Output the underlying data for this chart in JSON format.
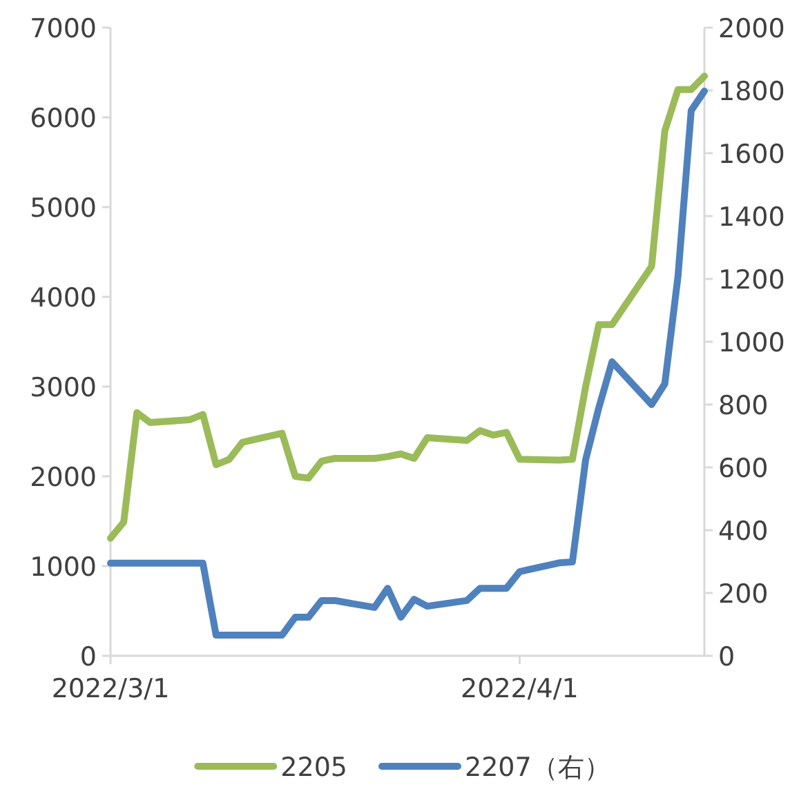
{
  "chart_data": {
    "type": "line",
    "x": [
      "2022-03-01",
      "2022-03-02",
      "2022-03-03",
      "2022-03-04",
      "2022-03-07",
      "2022-03-08",
      "2022-03-09",
      "2022-03-10",
      "2022-03-11",
      "2022-03-14",
      "2022-03-15",
      "2022-03-16",
      "2022-03-17",
      "2022-03-18",
      "2022-03-21",
      "2022-03-22",
      "2022-03-23",
      "2022-03-24",
      "2022-03-25",
      "2022-03-28",
      "2022-03-29",
      "2022-03-30",
      "2022-03-31",
      "2022-04-01",
      "2022-04-04",
      "2022-04-05",
      "2022-04-06",
      "2022-04-07",
      "2022-04-08",
      "2022-04-11",
      "2022-04-12",
      "2022-04-13",
      "2022-04-14",
      "2022-04-15"
    ],
    "series": [
      {
        "name": "2205",
        "color": "#9bbb59",
        "values": [
          1310,
          1490,
          2710,
          2600,
          2630,
          2690,
          2130,
          2190,
          2380,
          2480,
          2000,
          1980,
          2170,
          2200,
          2200,
          2220,
          2250,
          2200,
          2430,
          2400,
          2510,
          2460,
          2490,
          2190,
          2180,
          2190,
          3000,
          3690,
          3690,
          4340,
          5850,
          6310,
          6310,
          6460
        ]
      },
      {
        "name": "2207（右）",
        "color": "#4f81bd",
        "axis": "y2",
        "values": [
          295,
          295,
          295,
          295,
          295,
          295,
          66,
          66,
          66,
          66,
          123,
          123,
          176,
          176,
          154,
          215,
          123,
          180,
          158,
          176,
          215,
          215,
          215,
          268,
          296,
          299,
          624,
          790,
          936,
          800,
          866,
          1209,
          1736,
          1798
        ]
      }
    ],
    "xlim": [
      "2022-03-01",
      "2022-04-15"
    ],
    "xticks": [
      {
        "value": "2022-03-01",
        "label": "2022/3/1"
      },
      {
        "value": "2022-04-01",
        "label": "2022/4/1"
      }
    ],
    "ylim": [
      0,
      7000
    ],
    "yticks": [
      0,
      1000,
      2000,
      3000,
      4000,
      5000,
      6000,
      7000
    ],
    "y2lim": [
      0,
      2000
    ],
    "y2ticks": [
      0,
      200,
      400,
      600,
      800,
      1000,
      1200,
      1400,
      1600,
      1800,
      2000
    ],
    "grid": false,
    "legend": "bottom",
    "line_style": "solid",
    "marker": "none"
  }
}
